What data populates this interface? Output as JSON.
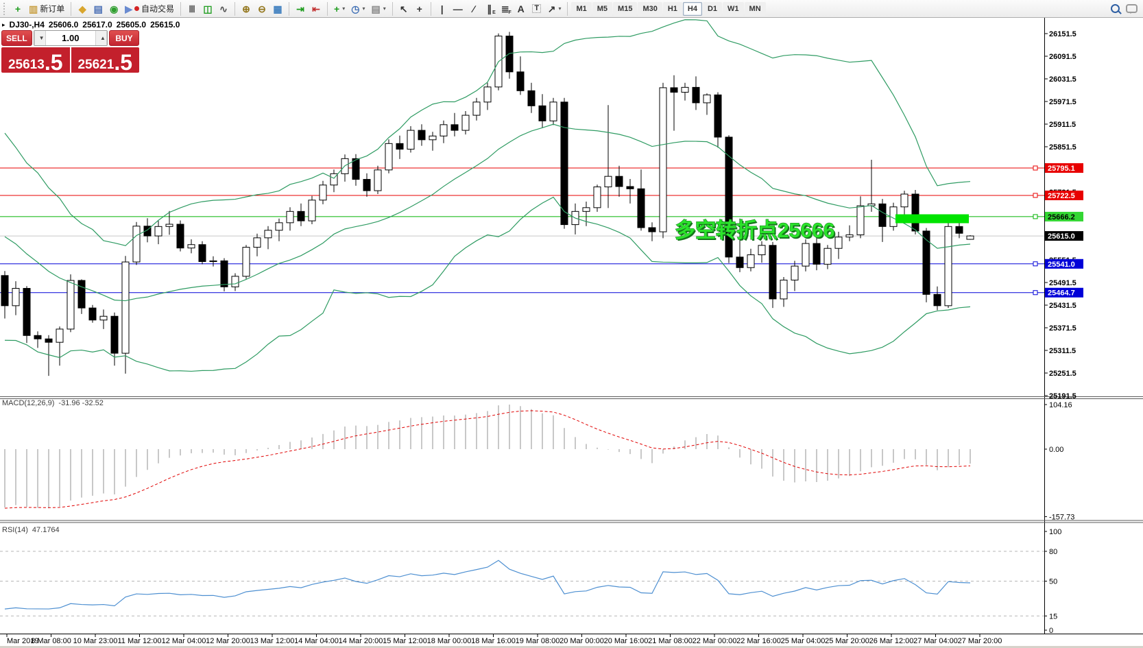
{
  "toolbar": {
    "items": [
      {
        "kind": "grip"
      },
      {
        "kind": "btn",
        "name": "new-chart-button",
        "icon": "+",
        "icon_color": "#1f9d1f"
      },
      {
        "kind": "btn",
        "name": "new-order-button",
        "icon": "▥",
        "icon_color": "#caa34a",
        "label": "新订单"
      },
      {
        "kind": "sep"
      },
      {
        "kind": "btn",
        "name": "market-watch-button",
        "icon": "◆",
        "icon_color": "#d9a62e"
      },
      {
        "kind": "btn",
        "name": "metaeditor-button",
        "icon": "▤",
        "icon_color": "#4a6fb5"
      },
      {
        "kind": "btn",
        "name": "signals-button",
        "icon": "◉",
        "icon_color": "#2e9e2e"
      },
      {
        "kind": "btn",
        "name": "autotrading-button",
        "icon": "▶",
        "icon_color": "#6a8bd0",
        "label": "自动交易",
        "dot": "#d42424"
      },
      {
        "kind": "sep"
      },
      {
        "kind": "btn",
        "name": "bar-chart-button",
        "icon": "Ⅲ",
        "icon_color": "#555555"
      },
      {
        "kind": "btn",
        "name": "candlestick-chart-button",
        "icon": "◫",
        "icon_color": "#1f9d1f"
      },
      {
        "kind": "btn",
        "name": "line-chart-button",
        "icon": "∿",
        "icon_color": "#555555"
      },
      {
        "kind": "sep"
      },
      {
        "kind": "btn",
        "name": "zoom-in-button",
        "icon": "⊕",
        "icon_color": "#93761c"
      },
      {
        "kind": "btn",
        "name": "zoom-out-button",
        "icon": "⊖",
        "icon_color": "#93761c"
      },
      {
        "kind": "btn",
        "name": "tile-windows-button",
        "icon": "▦",
        "icon_color": "#3f7fbf"
      },
      {
        "kind": "sep"
      },
      {
        "kind": "btn",
        "name": "auto-scroll-button",
        "icon": "⇥",
        "icon_color": "#1f9d1f"
      },
      {
        "kind": "btn",
        "name": "chart-shift-button",
        "icon": "⇤",
        "icon_color": "#c23030"
      },
      {
        "kind": "sep"
      },
      {
        "kind": "btn",
        "name": "indicators-button",
        "icon": "+",
        "icon_color": "#1f9d1f",
        "caret": true
      },
      {
        "kind": "btn",
        "name": "periods-button",
        "icon": "◷",
        "icon_color": "#3f6fb5",
        "caret": true
      },
      {
        "kind": "btn",
        "name": "templates-button",
        "icon": "▤",
        "icon_color": "#888888",
        "caret": true
      },
      {
        "kind": "sep"
      },
      {
        "kind": "btn",
        "name": "cursor-button",
        "icon": "↖",
        "icon_color": "#333333"
      },
      {
        "kind": "btn",
        "name": "crosshair-button",
        "icon": "+",
        "icon_color": "#333333"
      },
      {
        "kind": "sep"
      },
      {
        "kind": "btn",
        "name": "vertical-line-button",
        "icon": "|",
        "icon_color": "#333333"
      },
      {
        "kind": "btn",
        "name": "horizontal-line-button",
        "icon": "—",
        "icon_color": "#333333"
      },
      {
        "kind": "btn",
        "name": "trendline-button",
        "icon": "∕",
        "icon_color": "#333333"
      },
      {
        "kind": "btn",
        "name": "channel-button",
        "icon": "∥",
        "icon_color": "#333333",
        "sub": "E"
      },
      {
        "kind": "btn",
        "name": "fibonacci-button",
        "icon": "≣",
        "icon_color": "#333333",
        "sub": "F"
      },
      {
        "kind": "btn",
        "name": "text-button",
        "icon": "A",
        "icon_color": "#333333"
      },
      {
        "kind": "btn",
        "name": "text-label-button",
        "icon": "T",
        "icon_color": "#333333",
        "boxed": true
      },
      {
        "kind": "btn",
        "name": "arrows-button",
        "icon": "↗",
        "icon_color": "#333333",
        "caret": true
      },
      {
        "kind": "sep"
      },
      {
        "kind": "tf",
        "name": "timeframe-m1",
        "label": "M1"
      },
      {
        "kind": "tf",
        "name": "timeframe-m5",
        "label": "M5"
      },
      {
        "kind": "tf",
        "name": "timeframe-m15",
        "label": "M15"
      },
      {
        "kind": "tf",
        "name": "timeframe-m30",
        "label": "M30"
      },
      {
        "kind": "tf",
        "name": "timeframe-h1",
        "label": "H1"
      },
      {
        "kind": "tf",
        "name": "timeframe-h4",
        "label": "H4",
        "active": true
      },
      {
        "kind": "tf",
        "name": "timeframe-d1",
        "label": "D1"
      },
      {
        "kind": "tf",
        "name": "timeframe-w1",
        "label": "W1"
      },
      {
        "kind": "tf",
        "name": "timeframe-mn",
        "label": "MN"
      },
      {
        "kind": "spacer"
      },
      {
        "kind": "btn",
        "name": "search-button",
        "css_icon": "mag"
      },
      {
        "kind": "btn",
        "name": "chat-button",
        "css_icon": "bubble"
      }
    ]
  },
  "symbol_readout": {
    "marker": "▸",
    "symbol": "DJ30-,H4",
    "open": "25606.0",
    "high": "25617.0",
    "low": "25605.0",
    "close": "25615.0"
  },
  "trade_panel": {
    "sell_label": "SELL",
    "buy_label": "BUY",
    "volume": "1.00",
    "volume_down_glyph": "▼",
    "volume_up_glyph": "▲",
    "sell_price_main": "25613",
    "sell_price_frac": ".5",
    "buy_price_main": "25621",
    "buy_price_frac": ".5"
  },
  "annotation": {
    "text": "多空转折点25666",
    "fill": "#2be32b",
    "outline": "#15761c"
  },
  "highlight_rect": {
    "color": "#00e400"
  },
  "price_axis": {
    "ticks": [
      26151.5,
      26091.5,
      26031.5,
      25971.5,
      25911.5,
      25851.5,
      25791.5,
      25731.5,
      25671.5,
      25611.5,
      25551.5,
      25491.5,
      25431.5,
      25371.5,
      25311.5,
      25251.5,
      25191.5
    ],
    "lines": [
      {
        "price": 25795.1,
        "label": "25795.1",
        "line_color": "#e80000",
        "badge_bg": "#e80000",
        "badge_fg": "#ffffff",
        "handle": true
      },
      {
        "price": 25722.5,
        "label": "25722.5",
        "line_color": "#e80000",
        "badge_bg": "#e80000",
        "badge_fg": "#ffffff",
        "handle": true
      },
      {
        "price": 25666.2,
        "label": "25666.2",
        "line_color": "#00b300",
        "badge_bg": "#33d633",
        "badge_fg": "#000000",
        "handle": true
      },
      {
        "price": 25615.0,
        "label": "25615.0",
        "line_color": "#c8c8c8",
        "badge_bg": "#000000",
        "badge_fg": "#ffffff",
        "handle": false,
        "current": true
      },
      {
        "price": 25541.0,
        "label": "25541.0",
        "line_color": "#0000d8",
        "badge_bg": "#0000d8",
        "badge_fg": "#ffffff",
        "handle": true
      },
      {
        "price": 25464.7,
        "label": "25464.7",
        "line_color": "#0000d8",
        "badge_bg": "#0000d8",
        "badge_fg": "#ffffff",
        "handle": true
      }
    ]
  },
  "time_axis": {
    "labels": [
      "Mar 2019",
      "8 Mar 08:00",
      "10 Mar 23:00",
      "11 Mar 12:00",
      "12 Mar 04:00",
      "12 Mar 20:00",
      "13 Mar 12:00",
      "14 Mar 04:00",
      "14 Mar 20:00",
      "15 Mar 12:00",
      "18 Mar 00:00",
      "18 Mar 16:00",
      "19 Mar 08:00",
      "20 Mar 00:00",
      "20 Mar 16:00",
      "21 Mar 08:00",
      "22 Mar 00:00",
      "22 Mar 16:00",
      "25 Mar 04:00",
      "25 Mar 20:00",
      "26 Mar 12:00",
      "27 Mar 04:00",
      "27 Mar 20:00"
    ]
  },
  "indicators": {
    "macd": {
      "label": "MACD(12,26,9)",
      "values": "-31.96 -32.52",
      "scale": [
        "104.16",
        "0.00",
        "-157.73"
      ]
    },
    "rsi": {
      "label": "RSI(14)",
      "value": "47.1764",
      "scale": [
        "100",
        "80",
        "50",
        "15",
        "0"
      ],
      "dashed_levels": [
        80,
        50,
        15
      ]
    }
  },
  "colors": {
    "bull": "#ffffff",
    "bear": "#000000",
    "outline": "#000000",
    "bollinger": "#2e9b62",
    "macd_hist": "#b0b0b0",
    "macd_signal": "#e00000",
    "rsi_line": "#4d8fd1",
    "level_dash": "#b6b6b6",
    "axis": "#000000"
  },
  "chart_data": {
    "type": "candlestick",
    "symbol": "DJ30-",
    "timeframe": "H4",
    "bollinger": {
      "period": 20,
      "deviation": 2
    },
    "macd_params": {
      "fast": 12,
      "slow": 26,
      "signal": 9
    },
    "rsi_params": {
      "period": 14
    },
    "y_axis_range": [
      25191.5,
      26151.5
    ],
    "prehistory_closes": [
      26180,
      26150,
      26160,
      26100,
      26120,
      26050,
      26070,
      25990,
      26010,
      25930,
      25950,
      25860,
      25880,
      25790,
      25810,
      25720,
      25740,
      25650,
      25600,
      25640,
      25560,
      25580,
      25520,
      25540,
      25480,
      25520,
      25460,
      25500,
      25470,
      25510
    ],
    "candles": [
      [
        25510,
        25522,
        25396,
        25430
      ],
      [
        25430,
        25495,
        25405,
        25476
      ],
      [
        25476,
        25482,
        25331,
        25351
      ],
      [
        25351,
        25362,
        25318,
        25342
      ],
      [
        25342,
        25352,
        25244,
        25333
      ],
      [
        25333,
        25375,
        25271,
        25368
      ],
      [
        25368,
        25513,
        25360,
        25497
      ],
      [
        25497,
        25500,
        25408,
        25424
      ],
      [
        25424,
        25432,
        25385,
        25392
      ],
      [
        25392,
        25420,
        25368,
        25402
      ],
      [
        25402,
        25412,
        25271,
        25304
      ],
      [
        25304,
        25562,
        25250,
        25546
      ],
      [
        25546,
        25652,
        25538,
        25641
      ],
      [
        25641,
        25662,
        25598,
        25615
      ],
      [
        25615,
        25655,
        25593,
        25640
      ],
      [
        25640,
        25681,
        25618,
        25646
      ],
      [
        25646,
        25656,
        25574,
        25583
      ],
      [
        25583,
        25606,
        25569,
        25592
      ],
      [
        25592,
        25601,
        25540,
        25547
      ],
      [
        25547,
        25561,
        25534,
        25549
      ],
      [
        25549,
        25556,
        25468,
        25480
      ],
      [
        25480,
        25516,
        25469,
        25508
      ],
      [
        25508,
        25591,
        25501,
        25585
      ],
      [
        25585,
        25621,
        25561,
        25610
      ],
      [
        25610,
        25641,
        25580,
        25630
      ],
      [
        25630,
        25661,
        25601,
        25650
      ],
      [
        25650,
        25691,
        25629,
        25680
      ],
      [
        25680,
        25701,
        25641,
        25655
      ],
      [
        25655,
        25721,
        25646,
        25710
      ],
      [
        25710,
        25761,
        25699,
        25750
      ],
      [
        25750,
        25791,
        25731,
        25780
      ],
      [
        25780,
        25831,
        25759,
        25820
      ],
      [
        25820,
        25832,
        25748,
        25765
      ],
      [
        25765,
        25781,
        25719,
        25735
      ],
      [
        25735,
        25801,
        25726,
        25790
      ],
      [
        25790,
        25871,
        25781,
        25860
      ],
      [
        25860,
        25881,
        25819,
        25845
      ],
      [
        25845,
        25906,
        25836,
        25895
      ],
      [
        25895,
        25911,
        25854,
        25870
      ],
      [
        25870,
        25891,
        25841,
        25880
      ],
      [
        25880,
        25921,
        25861,
        25910
      ],
      [
        25910,
        25941,
        25879,
        25895
      ],
      [
        25895,
        25946,
        25884,
        25935
      ],
      [
        25935,
        25981,
        25921,
        25970
      ],
      [
        25970,
        26021,
        25949,
        26010
      ],
      [
        26010,
        26152,
        26001,
        26145
      ],
      [
        26145,
        26156,
        26032,
        26050
      ],
      [
        26050,
        26091,
        25989,
        26000
      ],
      [
        26000,
        26021,
        25941,
        25960
      ],
      [
        25960,
        25991,
        25901,
        25920
      ],
      [
        25920,
        25981,
        25909,
        25970
      ],
      [
        25970,
        25981,
        25634,
        25645
      ],
      [
        25645,
        25701,
        25619,
        25680
      ],
      [
        25680,
        25706,
        25641,
        25690
      ],
      [
        25690,
        25751,
        25679,
        25745
      ],
      [
        25745,
        25962,
        25689,
        25773
      ],
      [
        25773,
        25801,
        25719,
        25746
      ],
      [
        25746,
        25766,
        25701,
        25740
      ],
      [
        25740,
        25791,
        25629,
        25637
      ],
      [
        25637,
        25651,
        25601,
        25626
      ],
      [
        25626,
        26021,
        25609,
        26008
      ],
      [
        26008,
        26041,
        25894,
        25996
      ],
      [
        25996,
        26021,
        25974,
        26009
      ],
      [
        26009,
        26038,
        25949,
        25968
      ],
      [
        25968,
        25993,
        25936,
        25989
      ],
      [
        25989,
        25996,
        25849,
        25877
      ],
      [
        25877,
        25882,
        25543,
        25559
      ],
      [
        25559,
        25661,
        25519,
        25531
      ],
      [
        25531,
        25581,
        25521,
        25565
      ],
      [
        25565,
        25601,
        25544,
        25590
      ],
      [
        25590,
        25599,
        25424,
        25448
      ],
      [
        25448,
        25506,
        25427,
        25498
      ],
      [
        25498,
        25549,
        25469,
        25535
      ],
      [
        25535,
        25606,
        25521,
        25595
      ],
      [
        25595,
        25611,
        25524,
        25540
      ],
      [
        25540,
        25591,
        25527,
        25582
      ],
      [
        25582,
        25626,
        25554,
        25612
      ],
      [
        25612,
        25643,
        25601,
        25618
      ],
      [
        25618,
        25720,
        25609,
        25695
      ],
      [
        25695,
        25817,
        25679,
        25700
      ],
      [
        25700,
        25713,
        25599,
        25640
      ],
      [
        25640,
        25703,
        25629,
        25692
      ],
      [
        25692,
        25735,
        25647,
        25726
      ],
      [
        25726,
        25737,
        25619,
        25628
      ],
      [
        25628,
        25636,
        25439,
        25460
      ],
      [
        25460,
        25481,
        25418,
        25430
      ],
      [
        25430,
        25649,
        25424,
        25640
      ],
      [
        25640,
        25656,
        25609,
        25622
      ],
      [
        25606,
        25617,
        25605,
        25615
      ]
    ]
  }
}
